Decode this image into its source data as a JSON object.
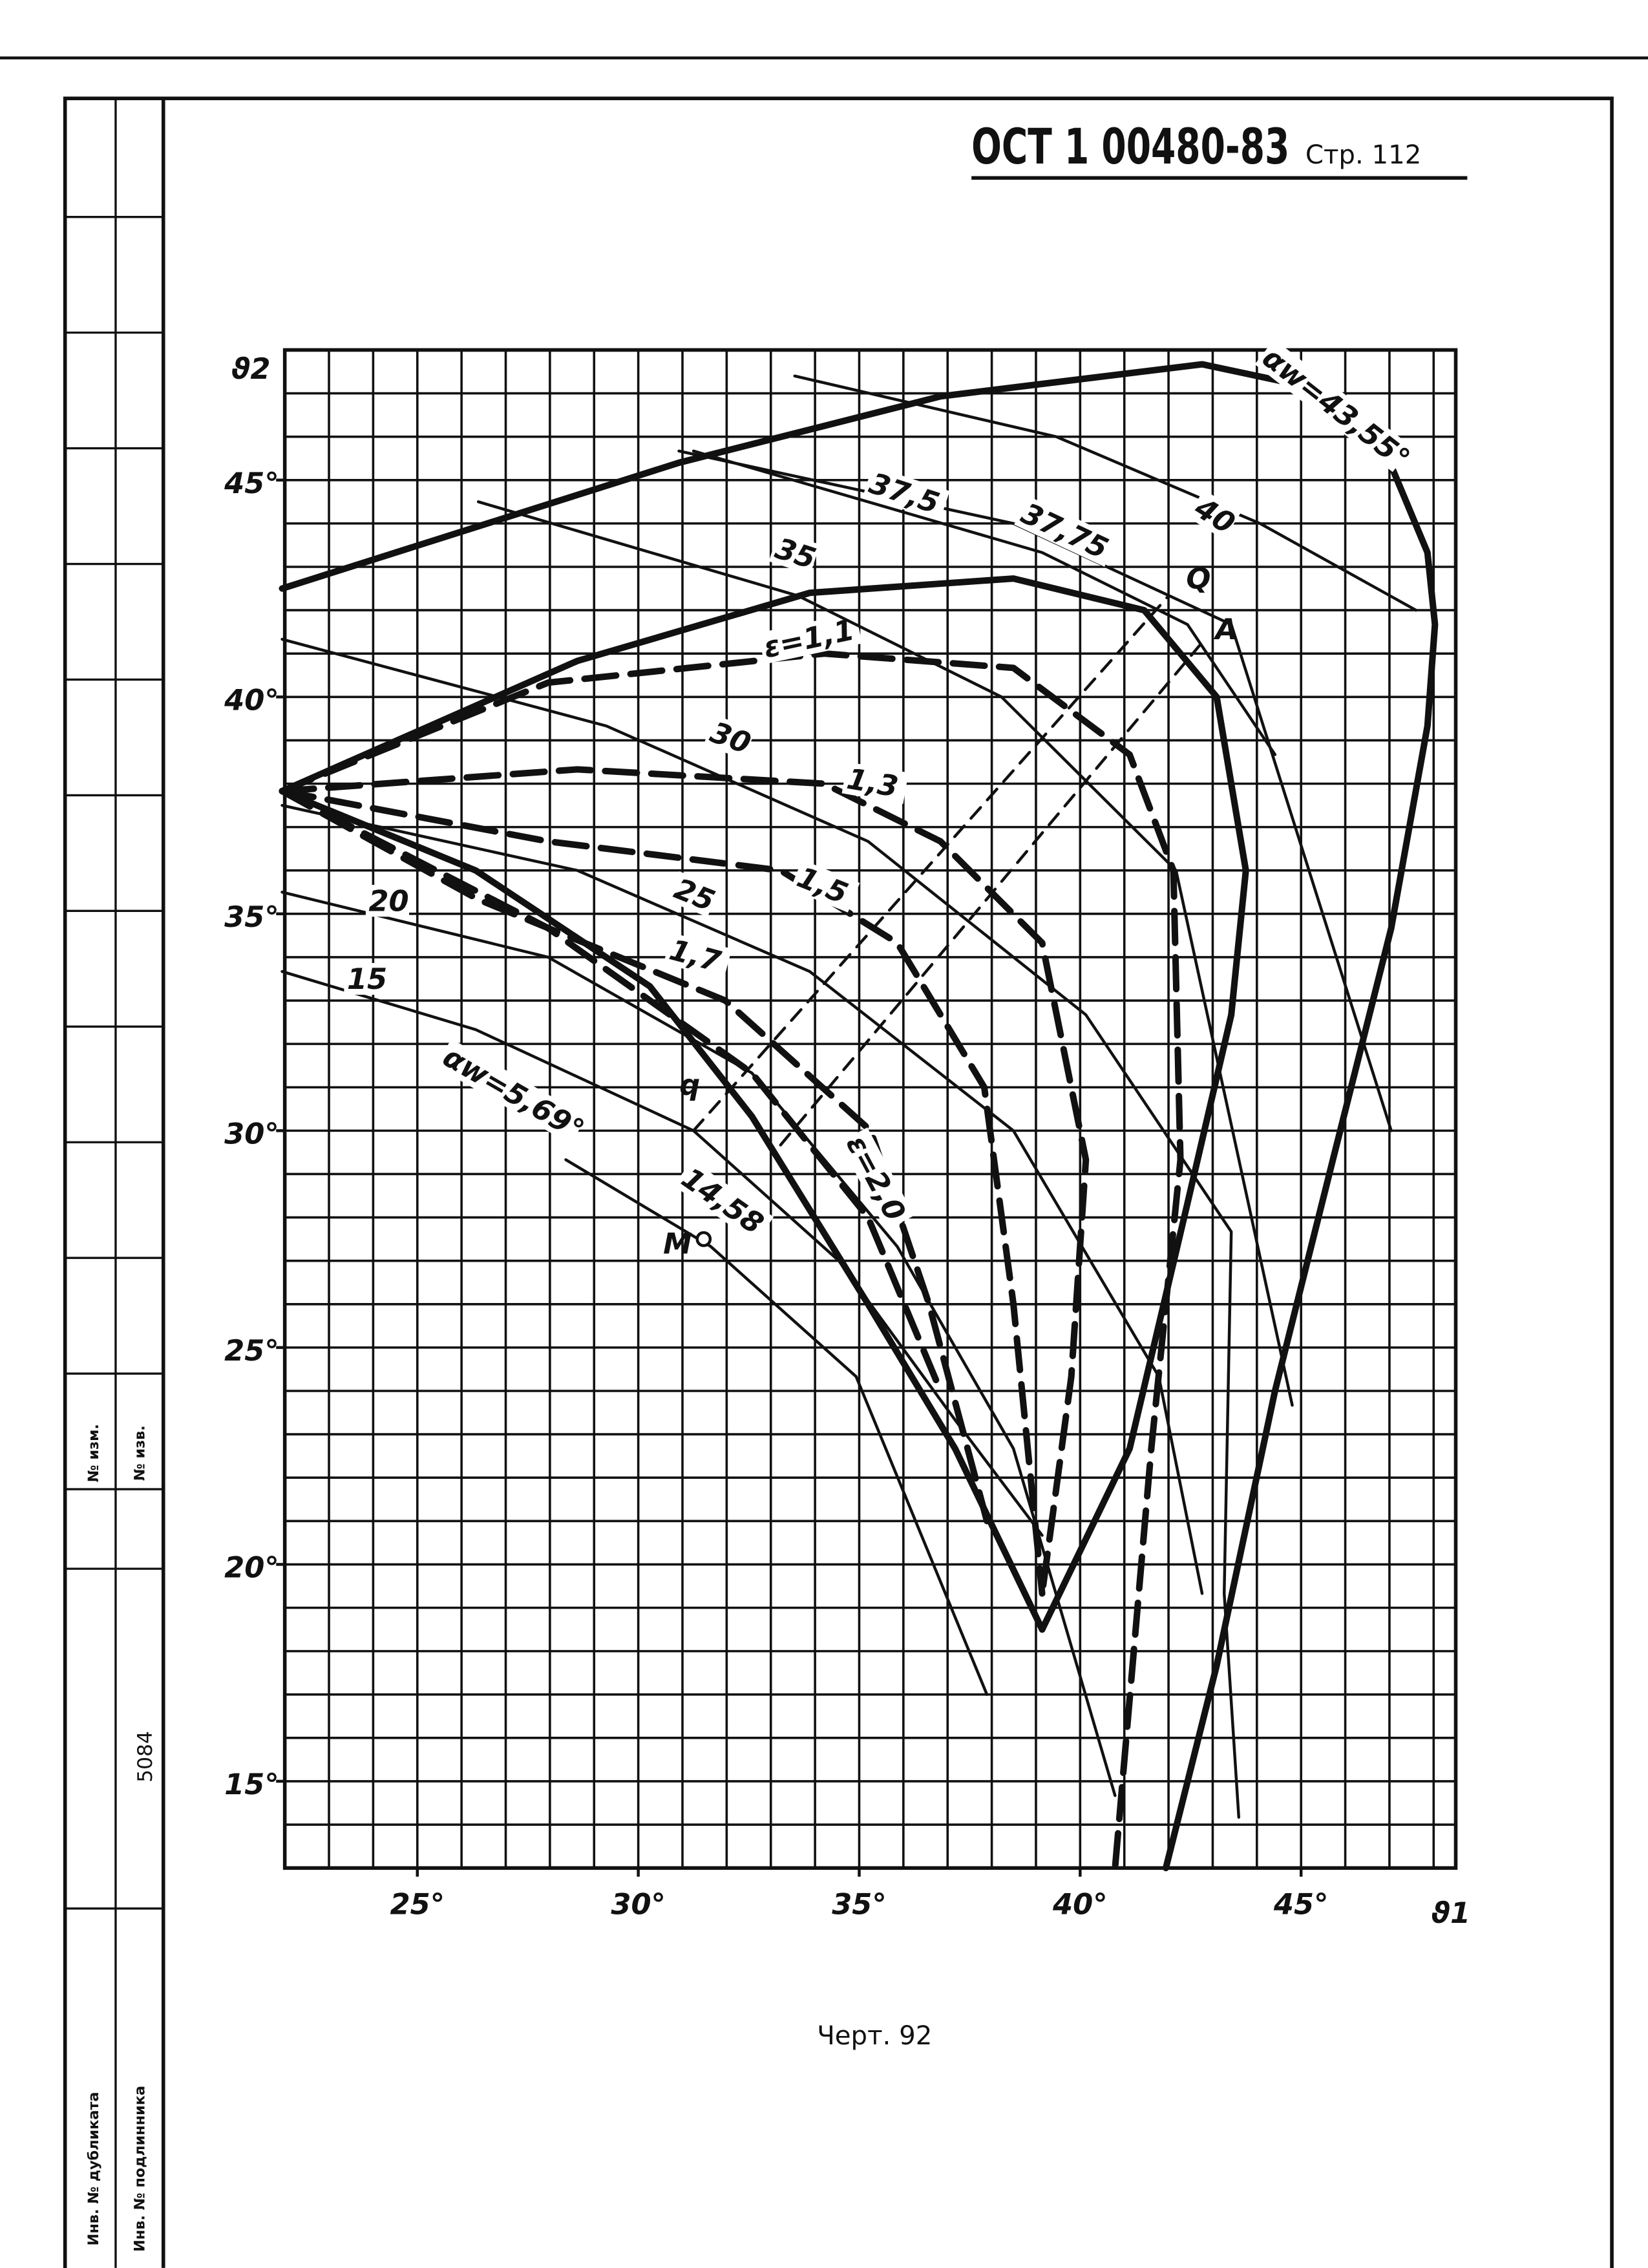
{
  "document": {
    "header": "ОСТ 1 00480-83",
    "page": "Стр. 112",
    "caption": "Черт. 92",
    "stamp": {
      "number": "5084",
      "change_1": "№ изм.",
      "change_2": "№ изв.",
      "duplicate": "Инв. № дубликата",
      "original": "Инв. № подлинника"
    }
  },
  "chart_data": {
    "type": "line",
    "x_label": "ϑ1",
    "y_label": "ϑ2",
    "xlim": [
      22,
      48.5
    ],
    "ylim": [
      13,
      48
    ],
    "grid": true,
    "grid_step": 1,
    "xticks": [
      {
        "value": 25,
        "label": "25°"
      },
      {
        "value": 30,
        "label": "30°"
      },
      {
        "value": 35,
        "label": "35°"
      },
      {
        "value": 40,
        "label": "40°"
      },
      {
        "value": 45,
        "label": "45°"
      }
    ],
    "yticks": [
      {
        "value": 15,
        "label": "15°"
      },
      {
        "value": 20,
        "label": "20°"
      },
      {
        "value": 25,
        "label": "25°"
      },
      {
        "value": 30,
        "label": "30°"
      },
      {
        "value": 35,
        "label": "35°"
      },
      {
        "value": 40,
        "label": "40°"
      },
      {
        "value": 45,
        "label": "45°"
      }
    ],
    "series": [
      {
        "name": "αw=43,55°",
        "color": "#111111",
        "weight": "bold",
        "dashed": false,
        "x": [
          21.94,
          30.92,
          36.84,
          42.76,
          45.07,
          47.04,
          47.86,
          48.03,
          47.86,
          47.04,
          45.72,
          44.41,
          43.09,
          41.94
        ],
        "values": [
          42.5,
          45.4,
          46.93,
          47.67,
          47.17,
          45.33,
          43.33,
          41.67,
          39.33,
          34.67,
          29.33,
          24.0,
          17.67,
          13.0
        ]
      },
      {
        "color": "#111111",
        "weight": "bold",
        "dashed": false,
        "x": [
          21.94,
          28.62,
          33.88,
          38.49,
          41.45,
          43.09,
          43.75,
          43.42,
          42.43,
          41.12,
          39.14
        ],
        "values": [
          37.83,
          40.83,
          42.4,
          42.73,
          42.0,
          40.0,
          36.0,
          32.67,
          28.33,
          22.67,
          18.5
        ]
      },
      {
        "name": "ε=1,1",
        "color": "#111111",
        "weight": "bold",
        "dashed": true,
        "x": [
          21.94,
          27.96,
          34.21,
          38.49,
          41.12,
          42.11,
          42.27,
          41.61,
          40.79
        ],
        "values": [
          37.83,
          40.33,
          41.0,
          40.67,
          38.67,
          36.0,
          29.33,
          22.67,
          13.0
        ]
      },
      {
        "name": "1,3",
        "color": "#111111",
        "weight": "bold",
        "dashed": true,
        "x": [
          21.94,
          28.62,
          34.21,
          36.84,
          39.14,
          40.13,
          39.8,
          39.14
        ],
        "values": [
          37.83,
          38.33,
          38.0,
          36.67,
          34.33,
          29.33,
          24.33,
          19.33
        ]
      },
      {
        "name": "1,5",
        "color": "#111111",
        "weight": "bold",
        "dashed": true,
        "x": [
          21.94,
          27.96,
          33.22,
          35.86,
          37.83,
          38.49,
          39.14
        ],
        "values": [
          37.83,
          36.67,
          36.0,
          34.33,
          31.0,
          26.0,
          19.33
        ]
      },
      {
        "name": "1,7",
        "color": "#111111",
        "weight": "bold",
        "dashed": true,
        "x": [
          21.94,
          26.38,
          31.97,
          35.26,
          36.58,
          37.89
        ],
        "values": [
          37.83,
          35.33,
          33.0,
          30.0,
          26.0,
          21.0
        ]
      },
      {
        "name": "ε=2,0",
        "color": "#111111",
        "weight": "bold",
        "dashed": true,
        "x": [
          21.94,
          27.96,
          32.57,
          35.2,
          36.84
        ],
        "values": [
          37.83,
          34.67,
          31.33,
          28.0,
          24.0
        ]
      },
      {
        "name": "αw=5,69°",
        "color": "#111111",
        "weight": "bold",
        "dashed": false,
        "x": [
          21.94,
          26.32,
          30.26,
          32.57,
          35.2,
          37.17,
          39.14
        ],
        "values": [
          37.83,
          36.0,
          33.33,
          30.33,
          26.0,
          22.67,
          18.5
        ]
      },
      {
        "name": "40",
        "color": "#111111",
        "weight": "normal",
        "dashed": false,
        "x": [
          33.54,
          39.46,
          44.07,
          47.6
        ],
        "values": [
          47.4,
          46.0,
          44.0,
          42.0
        ]
      },
      {
        "name": "37,5",
        "color": "#111111",
        "weight": "normal",
        "dashed": false,
        "x": [
          30.92,
          38.49,
          43.42,
          47.04
        ],
        "values": [
          45.67,
          44.0,
          41.67,
          30.0
        ]
      },
      {
        "name": "37,75",
        "color": "#111111",
        "weight": "normal",
        "dashed": false,
        "x": [
          31.25,
          39.14,
          42.43,
          44.41
        ],
        "values": [
          45.67,
          43.33,
          41.67,
          38.67
        ]
      },
      {
        "name": "35",
        "color": "#111111",
        "weight": "normal",
        "dashed": false,
        "x": [
          26.38,
          33.62,
          38.22,
          42.17,
          44.8
        ],
        "values": [
          44.5,
          42.33,
          40.0,
          36.0,
          23.67
        ]
      },
      {
        "name": "30",
        "color": "#111111",
        "weight": "normal",
        "dashed": false,
        "x": [
          21.94,
          29.28,
          35.2,
          40.13,
          43.42,
          43.26,
          43.59
        ],
        "values": [
          41.33,
          39.33,
          36.67,
          32.67,
          27.67,
          19.33,
          14.17
        ]
      },
      {
        "name": "25",
        "color": "#111111",
        "weight": "normal",
        "dashed": false,
        "x": [
          21.94,
          28.62,
          33.88,
          38.49,
          41.78,
          42.76
        ],
        "values": [
          37.5,
          36.0,
          33.67,
          30.0,
          24.33,
          19.33
        ]
      },
      {
        "name": "20",
        "color": "#111111",
        "weight": "normal",
        "dashed": false,
        "x": [
          21.94,
          27.96,
          32.57,
          35.86,
          38.49,
          40.79
        ],
        "values": [
          35.5,
          34.0,
          31.33,
          27.33,
          22.67,
          14.67
        ]
      },
      {
        "name": "15",
        "color": "#111111",
        "weight": "normal",
        "dashed": false,
        "x": [
          21.94,
          26.32,
          31.25,
          34.54,
          37.17,
          39.14
        ],
        "values": [
          33.67,
          32.33,
          30.0,
          27.0,
          23.33,
          20.67
        ]
      },
      {
        "name": "14,58",
        "color": "#111111",
        "weight": "normal",
        "dashed": false,
        "x": [
          28.36,
          31.64,
          34.93,
          37.89
        ],
        "values": [
          29.33,
          27.33,
          24.33,
          17.0
        ]
      },
      {
        "color": "#111111",
        "weight": "normal",
        "dashed": true,
        "x": [
          31.25,
          42.0
        ],
        "values": [
          30.0,
          42.33
        ]
      },
      {
        "color": "#111111",
        "weight": "normal",
        "dashed": true,
        "x": [
          33.22,
          42.82
        ],
        "values": [
          29.67,
          41.33
        ]
      }
    ],
    "annotations": [
      {
        "text": "Q",
        "x": 42.4,
        "y": 42.5
      },
      {
        "text": "A",
        "x": 43.06,
        "y": 41.33
      },
      {
        "text": "q",
        "x": 30.93,
        "y": 30.83
      },
      {
        "text": "M",
        "x": 31.48,
        "y": 27.5
      }
    ]
  }
}
